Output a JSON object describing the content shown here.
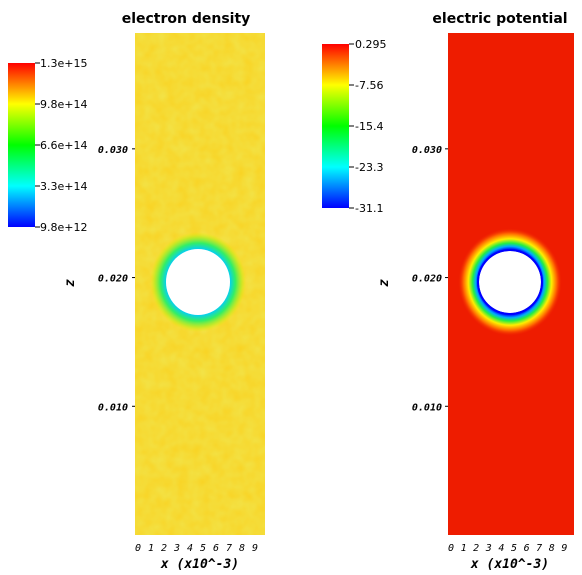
{
  "chart_data": [
    {
      "type": "heatmap",
      "title": "electron density",
      "xlabel": "x (x10^-3)",
      "ylabel": "z",
      "xlim": [
        0,
        10
      ],
      "ylim": [
        0,
        0.039
      ],
      "x_ticks": [
        "0",
        "1",
        "2",
        "3",
        "4",
        "5",
        "6",
        "7",
        "8",
        "9"
      ],
      "y_ticks": [
        {
          "value": 0.01,
          "label": "0.010"
        },
        {
          "value": 0.02,
          "label": "0.020"
        },
        {
          "value": 0.03,
          "label": "0.030"
        }
      ],
      "colorbar": {
        "labels": [
          "1.3e+15",
          "9.8e+14",
          "6.6e+14",
          "3.3e+14",
          "9.8e+12"
        ],
        "min": 9800000000000.0,
        "max": 1300000000000000.0
      },
      "feature": {
        "shape": "circular hole",
        "center_x": 5.0,
        "center_z": 0.02,
        "radius_x": 2.6
      },
      "background_level": "approximately 9.8e+14 to 1.1e+15 (yellow, noisy)",
      "edge_level": "low (blue) in ring around hole"
    },
    {
      "type": "heatmap",
      "title": "electric potential",
      "xlabel": "x (x10^-3)",
      "ylabel": "z",
      "xlim": [
        0,
        10
      ],
      "ylim": [
        0,
        0.039
      ],
      "x_ticks": [
        "0",
        "1",
        "2",
        "3",
        "4",
        "5",
        "6",
        "7",
        "8",
        "9"
      ],
      "y_ticks": [
        {
          "value": 0.01,
          "label": "0.010"
        },
        {
          "value": 0.02,
          "label": "0.020"
        },
        {
          "value": 0.03,
          "label": "0.030"
        }
      ],
      "colorbar": {
        "labels": [
          "0.295",
          "-7.56",
          "-15.4",
          "-23.3",
          "-31.1"
        ],
        "min": -31.1,
        "max": 0.295
      },
      "feature": {
        "shape": "circular hole",
        "center_x": 5.0,
        "center_z": 0.02,
        "radius_x": 2.6
      },
      "background_level": "approximately 0.295 (red)",
      "edge_level": "approximately -31.1 (blue) at hole boundary"
    }
  ]
}
